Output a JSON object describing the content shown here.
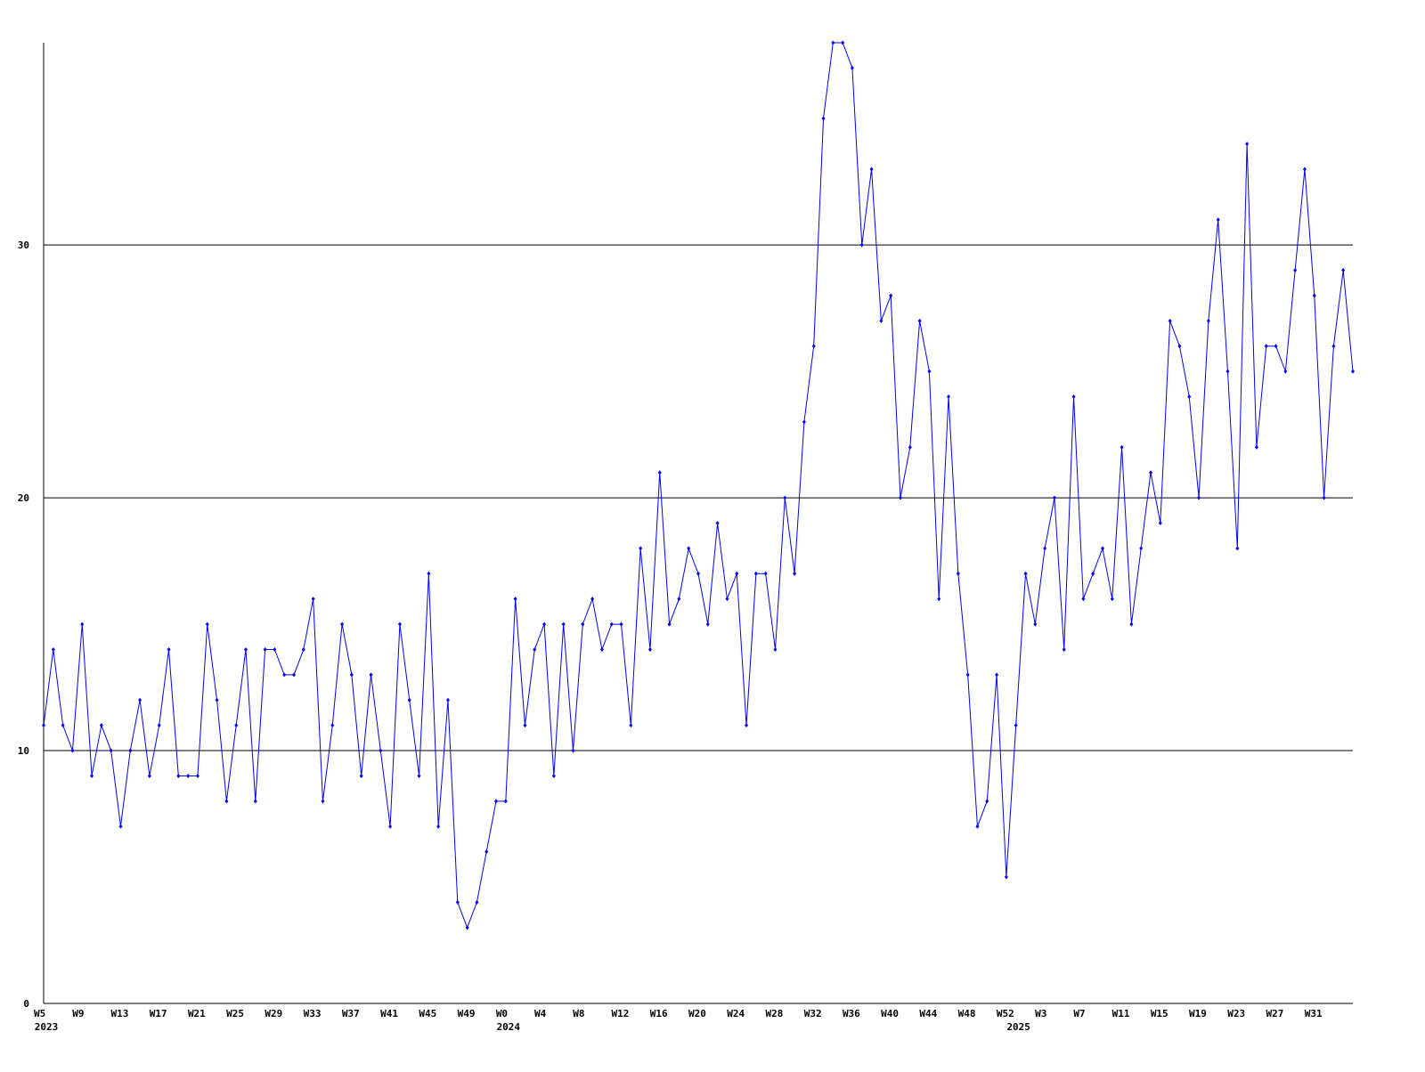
{
  "chart_data": {
    "type": "line",
    "categories": [
      "W5",
      null,
      null,
      null,
      "W9",
      null,
      null,
      null,
      "W13",
      null,
      null,
      null,
      "W17",
      null,
      null,
      null,
      "W21",
      null,
      null,
      null,
      "W25",
      null,
      null,
      null,
      "W29",
      null,
      null,
      null,
      "W33",
      null,
      null,
      null,
      "W37",
      null,
      null,
      null,
      "W41",
      null,
      null,
      null,
      "W45",
      null,
      null,
      null,
      "W49",
      null,
      null,
      null,
      "W0",
      null,
      null,
      null,
      "W4",
      null,
      null,
      null,
      "W8",
      null,
      null,
      null,
      "W12",
      null,
      null,
      null,
      "W16",
      null,
      null,
      null,
      "W20",
      null,
      null,
      null,
      "W24",
      null,
      null,
      null,
      "W28",
      null,
      null,
      null,
      "W32",
      null,
      null,
      null,
      "W36",
      null,
      null,
      null,
      "W40",
      null,
      null,
      null,
      "W44",
      null,
      null,
      null,
      "W48",
      null,
      null,
      null,
      "W52",
      null,
      null,
      null,
      "W3",
      null,
      null,
      null,
      "W7",
      null,
      null,
      null,
      "W11",
      null,
      null,
      null,
      "W15",
      null,
      null,
      null,
      "W19",
      null,
      null,
      null,
      "W23",
      null,
      null,
      null,
      "W27",
      null,
      null,
      null,
      "W31",
      null,
      null,
      null,
      null
    ],
    "category_years": [
      "2023",
      null,
      null,
      null,
      null,
      null,
      null,
      null,
      null,
      null,
      null,
      null,
      null,
      null,
      null,
      null,
      null,
      null,
      null,
      null,
      null,
      null,
      null,
      null,
      null,
      null,
      null,
      null,
      null,
      null,
      null,
      null,
      null,
      null,
      null,
      null,
      null,
      null,
      null,
      null,
      null,
      null,
      null,
      null,
      null,
      null,
      null,
      null,
      "2024",
      null,
      null,
      null,
      null,
      null,
      null,
      null,
      null,
      null,
      null,
      null,
      null,
      null,
      null,
      null,
      null,
      null,
      null,
      null,
      null,
      null,
      null,
      null,
      null,
      null,
      null,
      null,
      null,
      null,
      null,
      null,
      null,
      null,
      null,
      null,
      null,
      null,
      null,
      null,
      null,
      null,
      null,
      null,
      null,
      null,
      null,
      null,
      null,
      null,
      null,
      null,
      null,
      "2025",
      null,
      null,
      null,
      null,
      null,
      null,
      null,
      null,
      null,
      null,
      null,
      null,
      null,
      null,
      null,
      null,
      null,
      null,
      null,
      null,
      null,
      null,
      null,
      null,
      null,
      null,
      null,
      null,
      null,
      null,
      null,
      null,
      null,
      null,
      null
    ],
    "series": [
      {
        "color": "#0000ff",
        "values": [
          11,
          14,
          11,
          10,
          15,
          9,
          11,
          10,
          7,
          10,
          12,
          9,
          11,
          14,
          9,
          9,
          9,
          15,
          12,
          8,
          11,
          14,
          8,
          14,
          14,
          13,
          13,
          14,
          16,
          8,
          11,
          15,
          13,
          9,
          13,
          10,
          7,
          15,
          12,
          9,
          17,
          7,
          12,
          4,
          3,
          4,
          6,
          8,
          8,
          16,
          11,
          14,
          15,
          9,
          15,
          10,
          15,
          16,
          14,
          15,
          15,
          11,
          18,
          14,
          21,
          15,
          16,
          18,
          17,
          15,
          19,
          16,
          17,
          11,
          17,
          17,
          14,
          20,
          17,
          23,
          26,
          35,
          38,
          38,
          37,
          30,
          33,
          27,
          28,
          20,
          22,
          27,
          25,
          16,
          24,
          17,
          13,
          7,
          8,
          13,
          5,
          11,
          17,
          15,
          18,
          20,
          14,
          24,
          16,
          17,
          18,
          16,
          22,
          15,
          18,
          21,
          19,
          27,
          26,
          24,
          20,
          27,
          31,
          25,
          18,
          34,
          22,
          26,
          26,
          25,
          29,
          33,
          28,
          20,
          26,
          29,
          25
        ]
      }
    ],
    "ylim": [
      0,
      38
    ],
    "yticks": [
      0,
      10,
      20,
      30
    ],
    "grid": true
  }
}
